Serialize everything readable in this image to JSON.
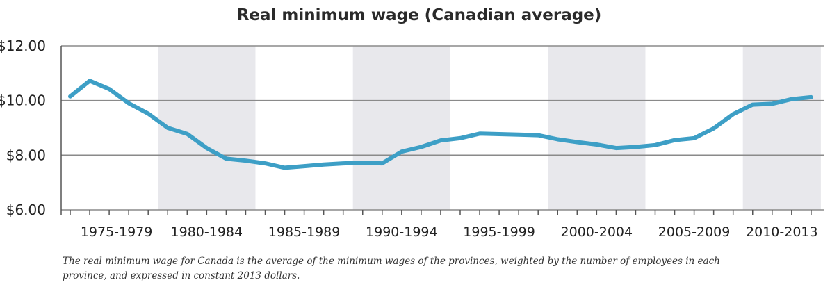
{
  "chart_data": {
    "type": "line",
    "title": "Real minimum wage (Canadian average)",
    "xlabel": "",
    "ylabel": "",
    "x": [
      1975,
      1976,
      1977,
      1978,
      1979,
      1980,
      1981,
      1982,
      1983,
      1984,
      1985,
      1986,
      1987,
      1988,
      1989,
      1990,
      1991,
      1992,
      1993,
      1994,
      1995,
      1996,
      1997,
      1998,
      1999,
      2000,
      2001,
      2002,
      2003,
      2004,
      2005,
      2006,
      2007,
      2008,
      2009,
      2010,
      2011,
      2012,
      2013
    ],
    "series": [
      {
        "name": "Real minimum wage",
        "color": "#3d9fc6",
        "values": [
          10.15,
          10.72,
          10.42,
          9.9,
          9.52,
          9.0,
          8.78,
          8.26,
          7.87,
          7.8,
          7.7,
          7.54,
          7.6,
          7.66,
          7.7,
          7.72,
          7.7,
          8.13,
          8.3,
          8.54,
          8.62,
          8.79,
          8.77,
          8.75,
          8.73,
          8.58,
          8.48,
          8.39,
          8.26,
          8.3,
          8.37,
          8.55,
          8.62,
          8.98,
          9.5,
          9.85,
          9.88,
          10.05,
          10.12
        ]
      }
    ],
    "ylim": [
      6,
      12
    ],
    "yticks": [
      {
        "value": 12,
        "label": "$12.00"
      },
      {
        "value": 10,
        "label": "$10.00"
      },
      {
        "value": 8,
        "label": "$8.00"
      },
      {
        "value": 6,
        "label": "$6.00"
      }
    ],
    "periods": [
      {
        "label": "1975-1979",
        "start": 1975,
        "end": 1979,
        "shaded": false
      },
      {
        "label": "1980-1984",
        "start": 1980,
        "end": 1984,
        "shaded": true
      },
      {
        "label": "1985-1989",
        "start": 1985,
        "end": 1989,
        "shaded": false
      },
      {
        "label": "1990-1994",
        "start": 1990,
        "end": 1994,
        "shaded": true
      },
      {
        "label": "1995-1999",
        "start": 1995,
        "end": 1999,
        "shaded": false
      },
      {
        "label": "2000-2004",
        "start": 2000,
        "end": 2004,
        "shaded": true
      },
      {
        "label": "2005-2009",
        "start": 2005,
        "end": 2009,
        "shaded": false
      },
      {
        "label": "2010-2013",
        "start": 2010,
        "end": 2013,
        "shaded": true
      }
    ],
    "grid": true
  },
  "caption": "The real minimum wage for Canada is the average of the minimum wages of the provinces, weighted by the number of employees in each province, and expressed in constant 2013 dollars.",
  "colors": {
    "line": "#3d9fc6",
    "band": "#e8e8ec",
    "grid": "#8a8a8a",
    "axis": "#555555"
  }
}
